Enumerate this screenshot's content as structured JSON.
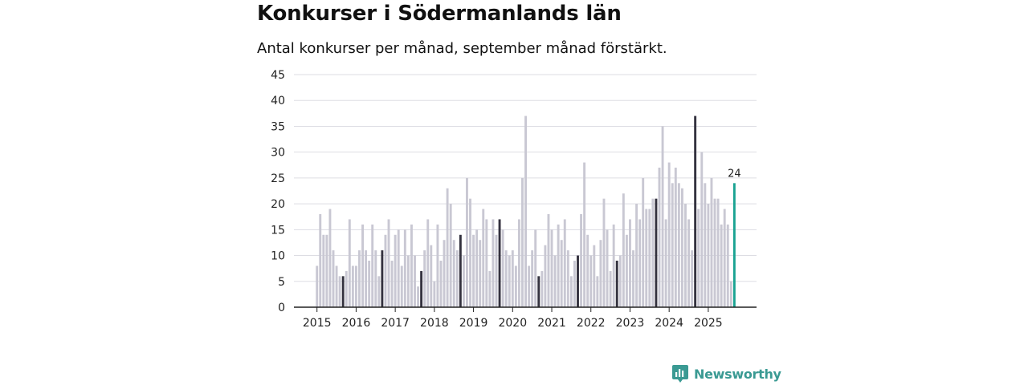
{
  "brand": {
    "name": "Newsworthy",
    "icon": "newsworthy-logo-icon",
    "color": "#3a9a93"
  },
  "colors": {
    "regular": "#c9c8d3",
    "september": "#34323f",
    "highlight": "#1aa392"
  },
  "chart_data": {
    "type": "bar",
    "title": "Konkurser i Södermanlands län",
    "subtitle": "Antal konkurser per månad, september månad förstärkt.",
    "xlabel": "",
    "ylabel": "",
    "ylim": [
      0,
      45
    ],
    "yticks": [
      0,
      5,
      10,
      15,
      20,
      25,
      30,
      35,
      40,
      45
    ],
    "grid": true,
    "start": "2015-01",
    "years": [
      "2015",
      "2016",
      "2017",
      "2018",
      "2019",
      "2020",
      "2021",
      "2022",
      "2023",
      "2024",
      "2025"
    ],
    "values": [
      8,
      18,
      14,
      14,
      19,
      11,
      8,
      6,
      6,
      7,
      17,
      8,
      8,
      11,
      16,
      11,
      9,
      16,
      11,
      6,
      11,
      14,
      17,
      9,
      14,
      15,
      8,
      15,
      10,
      16,
      10,
      4,
      7,
      11,
      17,
      12,
      5,
      16,
      9,
      13,
      23,
      20,
      13,
      11,
      14,
      10,
      25,
      21,
      14,
      15,
      13,
      19,
      17,
      7,
      17,
      14,
      17,
      15,
      11,
      10,
      11,
      8,
      17,
      25,
      37,
      8,
      11,
      15,
      6,
      7,
      12,
      18,
      15,
      10,
      16,
      13,
      17,
      11,
      6,
      9,
      10,
      18,
      28,
      14,
      10,
      12,
      6,
      13,
      21,
      15,
      7,
      16,
      9,
      10,
      22,
      14,
      17,
      11,
      20,
      17,
      25,
      19,
      19,
      21,
      21,
      27,
      35,
      17,
      28,
      24,
      27,
      24,
      23,
      20,
      17,
      11,
      37,
      19,
      30,
      24,
      20,
      25,
      21,
      21,
      16,
      19,
      16,
      5,
      24
    ],
    "highlight_label": "24"
  }
}
